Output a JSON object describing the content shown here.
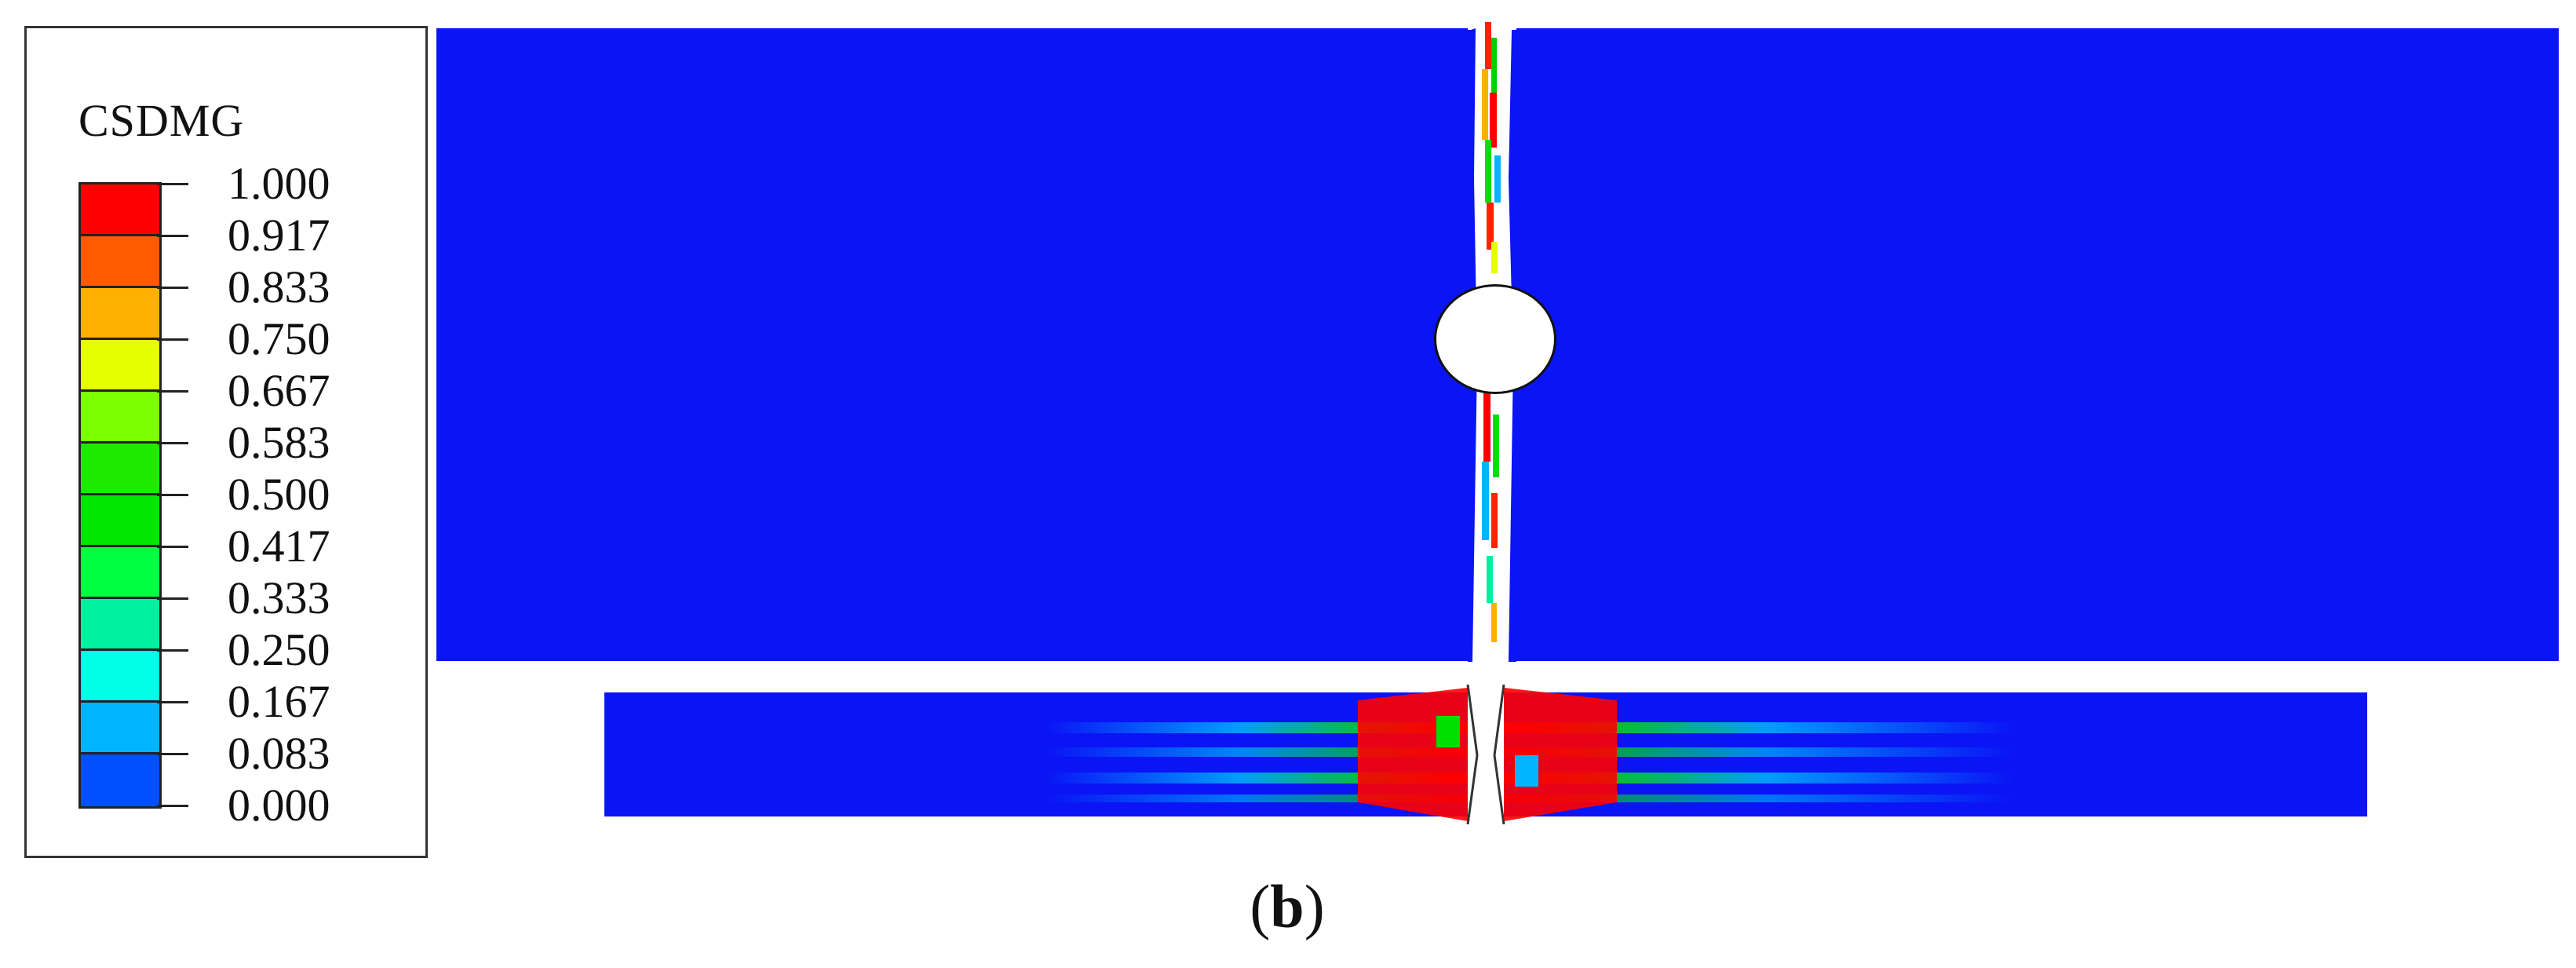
{
  "legend": {
    "title": "CSDMG",
    "ticks": [
      "1.000",
      "0.917",
      "0.833",
      "0.750",
      "0.667",
      "0.583",
      "0.500",
      "0.417",
      "0.333",
      "0.250",
      "0.167",
      "0.083",
      "0.000"
    ],
    "colors": [
      "#ff0000",
      "#ff5a00",
      "#ffb000",
      "#e6ff00",
      "#7cff00",
      "#1eea00",
      "#00e600",
      "#00ff40",
      "#00f0a0",
      "#00ffe6",
      "#00b4ff",
      "#0050ff",
      "#0a14f5"
    ]
  },
  "caption": {
    "open": "(",
    "letter": "b",
    "close": ")"
  },
  "colors": {
    "undamaged": "#0a14f5",
    "fully_damaged": "#ff0000"
  }
}
